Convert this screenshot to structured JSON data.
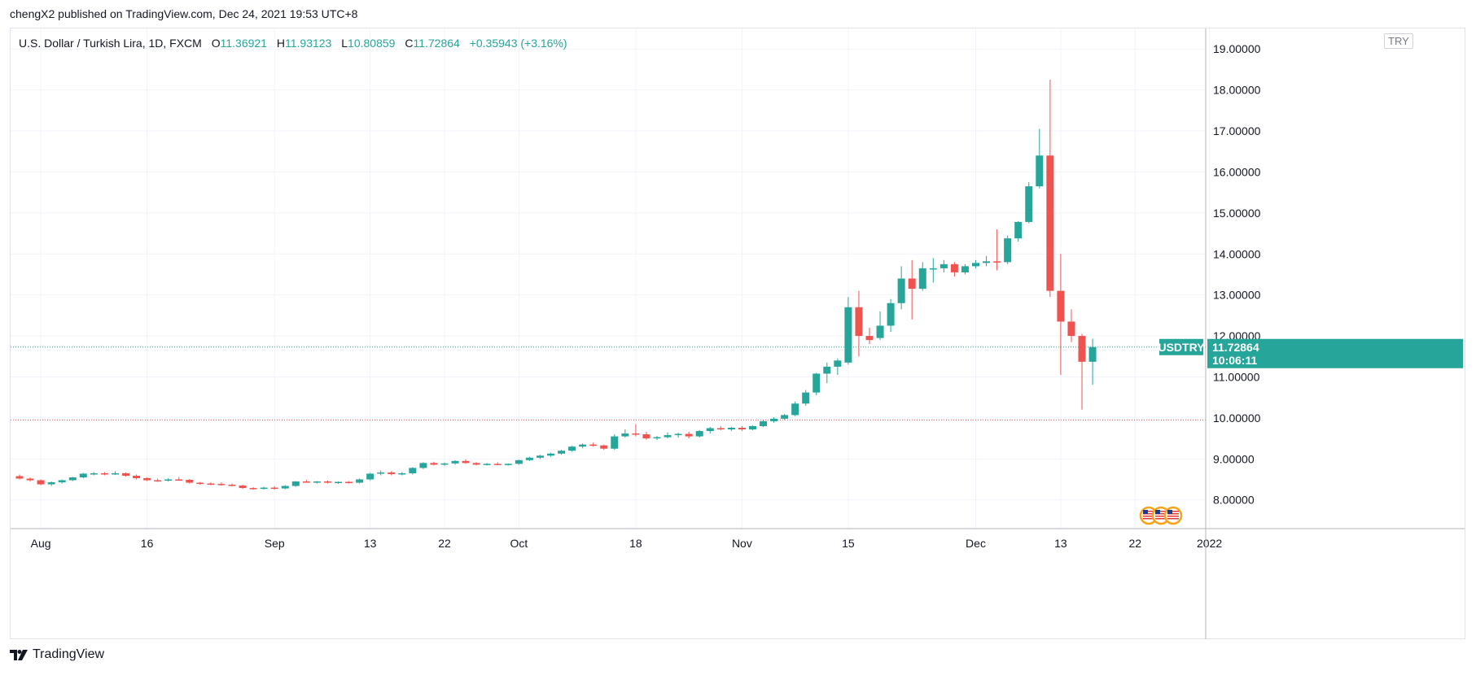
{
  "header": {
    "published_by": "chengX2 published on TradingView.com, Dec 24, 2021 19:53 UTC+8"
  },
  "legend": {
    "symbol_title": "U.S. Dollar / Turkish Lira, 1D, FXCM",
    "open_key": "O",
    "open": "11.36921",
    "high_key": "H",
    "high": "11.93123",
    "low_key": "L",
    "low": "10.80859",
    "close_key": "C",
    "close": "11.72864",
    "change": "+0.35943 (+3.16%)"
  },
  "currency_badge": "TRY",
  "footer": {
    "brand": "TradingView"
  },
  "colors": {
    "up": "#26a69a",
    "down": "#ef5350",
    "grid": "#f0f3fa",
    "axis_line": "#b2b5be",
    "price_line": "#26a69a",
    "low_line": "#ef5350"
  },
  "chart_data": {
    "type": "candlestick",
    "title": "U.S. Dollar / Turkish Lira, 1D, FXCM",
    "ylim": [
      7.3,
      19.5
    ],
    "y_ticks": [
      "8.00000",
      "9.00000",
      "10.00000",
      "11.00000",
      "12.00000",
      "13.00000",
      "14.00000",
      "15.00000",
      "16.00000",
      "17.00000",
      "18.00000",
      "19.00000"
    ],
    "x_ticks": [
      {
        "label": "Aug",
        "day": 2
      },
      {
        "label": "16",
        "day": 12
      },
      {
        "label": "Sep",
        "day": 24
      },
      {
        "label": "13",
        "day": 33
      },
      {
        "label": "22",
        "day": 40
      },
      {
        "label": "Oct",
        "day": 47
      },
      {
        "label": "18",
        "day": 58
      },
      {
        "label": "Nov",
        "day": 68
      },
      {
        "label": "15",
        "day": 78
      },
      {
        "label": "Dec",
        "day": 90
      },
      {
        "label": "13",
        "day": 98
      },
      {
        "label": "22",
        "day": 105
      },
      {
        "label": "2022",
        "day": 112
      }
    ],
    "last_price": {
      "symbol": "USDTRY",
      "value": "11.72864",
      "countdown": "10:06:11",
      "level": 11.72864
    },
    "low_marker_level": 9.95,
    "candles": [
      [
        8.58,
        8.62,
        8.5,
        8.52
      ],
      [
        8.52,
        8.55,
        8.45,
        8.48
      ],
      [
        8.48,
        8.5,
        8.36,
        8.38
      ],
      [
        8.38,
        8.45,
        8.34,
        8.43
      ],
      [
        8.43,
        8.5,
        8.4,
        8.48
      ],
      [
        8.48,
        8.56,
        8.46,
        8.55
      ],
      [
        8.55,
        8.66,
        8.53,
        8.64
      ],
      [
        8.64,
        8.68,
        8.6,
        8.65
      ],
      [
        8.65,
        8.68,
        8.6,
        8.63
      ],
      [
        8.63,
        8.7,
        8.61,
        8.65
      ],
      [
        8.65,
        8.67,
        8.57,
        8.59
      ],
      [
        8.59,
        8.62,
        8.5,
        8.53
      ],
      [
        8.53,
        8.55,
        8.46,
        8.48
      ],
      [
        8.48,
        8.52,
        8.44,
        8.47
      ],
      [
        8.47,
        8.53,
        8.45,
        8.5
      ],
      [
        8.5,
        8.56,
        8.47,
        8.49
      ],
      [
        8.49,
        8.51,
        8.4,
        8.42
      ],
      [
        8.42,
        8.44,
        8.37,
        8.4
      ],
      [
        8.4,
        8.43,
        8.36,
        8.39
      ],
      [
        8.39,
        8.43,
        8.35,
        8.37
      ],
      [
        8.37,
        8.4,
        8.33,
        8.35
      ],
      [
        8.35,
        8.37,
        8.27,
        8.29
      ],
      [
        8.29,
        8.31,
        8.25,
        8.27
      ],
      [
        8.27,
        8.32,
        8.25,
        8.3
      ],
      [
        8.3,
        8.33,
        8.25,
        8.28
      ],
      [
        8.28,
        8.36,
        8.26,
        8.34
      ],
      [
        8.34,
        8.46,
        8.32,
        8.45
      ],
      [
        8.45,
        8.49,
        8.42,
        8.43
      ],
      [
        8.43,
        8.46,
        8.4,
        8.45
      ],
      [
        8.45,
        8.47,
        8.4,
        8.42
      ],
      [
        8.42,
        8.45,
        8.39,
        8.44
      ],
      [
        8.44,
        8.46,
        8.4,
        8.42
      ],
      [
        8.42,
        8.52,
        8.4,
        8.5
      ],
      [
        8.5,
        8.66,
        8.48,
        8.64
      ],
      [
        8.64,
        8.72,
        8.6,
        8.67
      ],
      [
        8.67,
        8.7,
        8.6,
        8.63
      ],
      [
        8.63,
        8.68,
        8.6,
        8.65
      ],
      [
        8.65,
        8.8,
        8.62,
        8.78
      ],
      [
        8.78,
        8.92,
        8.75,
        8.9
      ],
      [
        8.9,
        8.93,
        8.84,
        8.86
      ],
      [
        8.86,
        8.91,
        8.83,
        8.89
      ],
      [
        8.89,
        8.97,
        8.86,
        8.95
      ],
      [
        8.95,
        8.99,
        8.88,
        8.9
      ],
      [
        8.9,
        8.92,
        8.84,
        8.86
      ],
      [
        8.86,
        8.9,
        8.84,
        8.88
      ],
      [
        8.88,
        8.92,
        8.85,
        8.87
      ],
      [
        8.87,
        8.89,
        8.84,
        8.88
      ],
      [
        8.88,
        8.98,
        8.86,
        8.97
      ],
      [
        8.97,
        9.05,
        8.95,
        9.03
      ],
      [
        9.03,
        9.1,
        9.0,
        9.08
      ],
      [
        9.08,
        9.15,
        9.05,
        9.13
      ],
      [
        9.13,
        9.22,
        9.1,
        9.2
      ],
      [
        9.2,
        9.32,
        9.18,
        9.3
      ],
      [
        9.3,
        9.38,
        9.26,
        9.35
      ],
      [
        9.35,
        9.4,
        9.3,
        9.33
      ],
      [
        9.33,
        9.35,
        9.22,
        9.25
      ],
      [
        9.25,
        9.6,
        9.22,
        9.55
      ],
      [
        9.55,
        9.72,
        9.52,
        9.62
      ],
      [
        9.62,
        9.85,
        9.55,
        9.6
      ],
      [
        9.6,
        9.66,
        9.47,
        9.5
      ],
      [
        9.5,
        9.56,
        9.46,
        9.53
      ],
      [
        9.53,
        9.65,
        9.5,
        9.58
      ],
      [
        9.58,
        9.64,
        9.52,
        9.61
      ],
      [
        9.61,
        9.66,
        9.5,
        9.55
      ],
      [
        9.55,
        9.7,
        9.52,
        9.68
      ],
      [
        9.68,
        9.78,
        9.62,
        9.75
      ],
      [
        9.75,
        9.8,
        9.7,
        9.72
      ],
      [
        9.72,
        9.78,
        9.68,
        9.76
      ],
      [
        9.76,
        9.8,
        9.68,
        9.72
      ],
      [
        9.72,
        9.82,
        9.7,
        9.8
      ],
      [
        9.8,
        9.95,
        9.78,
        9.92
      ],
      [
        9.92,
        10.02,
        9.88,
        9.98
      ],
      [
        9.98,
        10.1,
        9.95,
        10.07
      ],
      [
        10.07,
        10.4,
        10.04,
        10.35
      ],
      [
        10.35,
        10.68,
        10.3,
        10.62
      ],
      [
        10.62,
        11.1,
        10.55,
        11.08
      ],
      [
        11.08,
        11.35,
        10.85,
        11.25
      ],
      [
        11.25,
        11.45,
        11.05,
        11.4
      ],
      [
        11.35,
        12.95,
        11.3,
        12.7
      ],
      [
        12.7,
        13.1,
        11.5,
        12.0
      ],
      [
        12.0,
        12.2,
        11.8,
        11.9
      ],
      [
        11.95,
        12.6,
        11.9,
        12.25
      ],
      [
        12.25,
        12.9,
        12.1,
        12.8
      ],
      [
        12.8,
        13.7,
        12.65,
        13.4
      ],
      [
        13.4,
        13.85,
        12.4,
        13.15
      ],
      [
        13.15,
        13.8,
        13.1,
        13.65
      ],
      [
        13.65,
        13.9,
        13.3,
        13.65
      ],
      [
        13.65,
        13.85,
        13.55,
        13.75
      ],
      [
        13.75,
        13.8,
        13.45,
        13.55
      ],
      [
        13.55,
        13.75,
        13.5,
        13.7
      ],
      [
        13.7,
        13.85,
        13.65,
        13.78
      ],
      [
        13.78,
        13.95,
        13.7,
        13.82
      ],
      [
        13.82,
        14.6,
        13.6,
        13.8
      ],
      [
        13.8,
        14.45,
        13.75,
        14.38
      ],
      [
        14.38,
        14.8,
        14.3,
        14.78
      ],
      [
        14.78,
        15.75,
        14.75,
        15.65
      ],
      [
        15.65,
        17.05,
        15.6,
        16.4
      ],
      [
        16.4,
        18.25,
        12.95,
        13.1
      ],
      [
        13.1,
        14.0,
        11.05,
        12.35
      ],
      [
        12.35,
        12.65,
        11.85,
        12.0
      ],
      [
        12.0,
        12.05,
        10.2,
        11.37
      ],
      [
        11.37,
        11.93,
        10.81,
        11.73
      ]
    ]
  }
}
